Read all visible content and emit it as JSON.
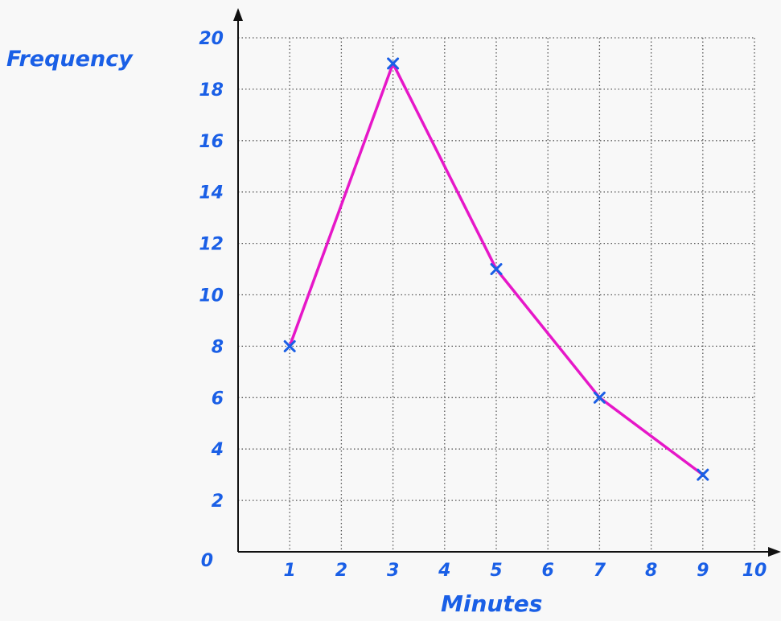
{
  "chart_data": {
    "type": "line",
    "xlabel": "Minutes",
    "ylabel": "Frequency",
    "xlim": [
      0,
      10
    ],
    "ylim": [
      0,
      20
    ],
    "x_ticks": [
      "0",
      "1",
      "2",
      "3",
      "4",
      "5",
      "6",
      "7",
      "8",
      "9",
      "10"
    ],
    "y_ticks": [
      "0",
      "2",
      "4",
      "6",
      "8",
      "10",
      "12",
      "14",
      "16",
      "18",
      "20"
    ],
    "grid": true,
    "series": [
      {
        "x": [
          1,
          3,
          5,
          7,
          9
        ],
        "y": [
          8,
          19,
          11,
          6,
          3
        ]
      }
    ],
    "colors": {
      "line": "#e617c8",
      "markers": "#1a5fe6",
      "labels": "#1a5fe6",
      "axes": "#111111",
      "grid": "#555555",
      "background": "#f8f8f8"
    }
  }
}
